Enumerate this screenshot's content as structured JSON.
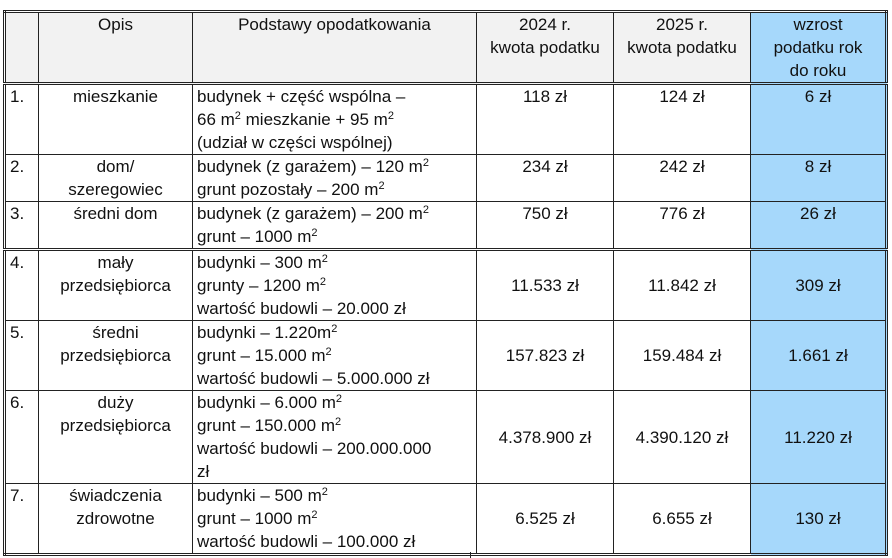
{
  "header": {
    "num": "",
    "opis": "Opis",
    "podstawy": "Podstawy opodatkowania",
    "y2024": [
      "2024 r.",
      "kwota podatku"
    ],
    "y2025": [
      "2025 r.",
      "kwota podatku"
    ],
    "wzrost": [
      "wzrost",
      "podatku rok",
      "do roku"
    ]
  },
  "colors": {
    "header_bg": "#f2f2f2",
    "highlight": "#a6d8fb"
  },
  "rows": [
    {
      "num": "1.",
      "opis": [
        "mieszkanie"
      ],
      "podstawy": [
        {
          "t": "budynek  + część wspólna –"
        },
        {
          "t": "66 m",
          "sup": "2",
          "t2": " mieszkanie + 95 m",
          "sup2": "2"
        },
        {
          "t": "(udział w części wspólnej)"
        }
      ],
      "y2024": "118 zł",
      "y2025": "124 zł",
      "wzrost": "6 zł"
    },
    {
      "num": "2.",
      "opis": [
        "dom/",
        "szeregowiec"
      ],
      "podstawy": [
        {
          "t": "budynek (z garażem) – 120 m",
          "sup": "2"
        },
        {
          "t": "grunt pozostały – 200 m",
          "sup": "2"
        }
      ],
      "y2024": "234 zł",
      "y2025": "242 zł",
      "wzrost": "8 zł"
    },
    {
      "num": "3.",
      "opis": [
        "średni dom"
      ],
      "podstawy": [
        {
          "t": "budynek (z garażem) – 200 m",
          "sup": "2"
        },
        {
          "t": "grunt – 1000 m",
          "sup": "2"
        }
      ],
      "y2024": "750 zł",
      "y2025": "776 zł",
      "wzrost": "26 zł"
    },
    {
      "num": "4.",
      "opis": [
        "mały",
        "przedsiębiorca"
      ],
      "podstawy": [
        {
          "t": "budynki – 300 m",
          "sup": "2"
        },
        {
          "t": "grunty – 1200 m",
          "sup": "2"
        },
        {
          "t": "wartość budowli – 20.000 zł"
        }
      ],
      "y2024": "11.533 zł",
      "y2025": "11.842 zł",
      "wzrost": "309 zł"
    },
    {
      "num": "5.",
      "opis": [
        "średni",
        "przedsiębiorca"
      ],
      "podstawy": [
        {
          "t": "budynki – 1.220m",
          "sup": "2"
        },
        {
          "t": "grunt – 15.000 m",
          "sup": "2"
        },
        {
          "t": "wartość budowli – 5.000.000 zł"
        }
      ],
      "y2024": "157.823 zł",
      "y2025": "159.484 zł",
      "wzrost": "1.661 zł"
    },
    {
      "num": "6.",
      "opis": [
        "duży",
        "przedsiębiorca"
      ],
      "podstawy": [
        {
          "t": "budynki – 6.000 m",
          "sup": "2"
        },
        {
          "t": "grunt – 150.000 m",
          "sup": "2"
        },
        {
          "t": "wartość budowli – 200.000.000"
        },
        {
          "t": "zł"
        }
      ],
      "y2024": "4.378.900 zł",
      "y2025": "4.390.120 zł",
      "wzrost": "11.220 zł"
    },
    {
      "num": "7.",
      "opis": [
        "świadczenia",
        "zdrowotne"
      ],
      "podstawy": [
        {
          "t": "budynki – 500 m",
          "sup": "2"
        },
        {
          "t": "grunt – 1000 m",
          "sup": "2"
        },
        {
          "t": "wartość budowli – 100.000 zł"
        }
      ],
      "y2024": "6.525 zł",
      "y2025": "6.655 zł",
      "wzrost": "130 zł"
    }
  ]
}
